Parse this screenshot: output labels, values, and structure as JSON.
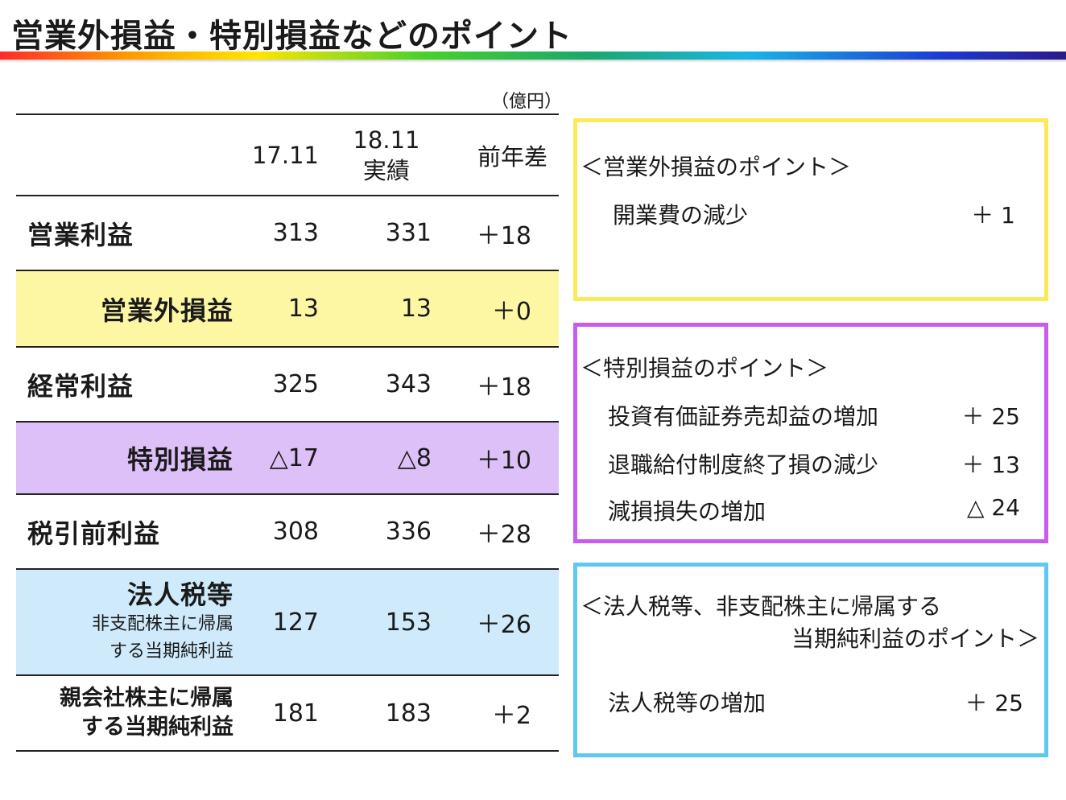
{
  "title": "営業外損益・特別損益などのポイント",
  "unit_label": "（億円）",
  "table": {
    "headers": [
      "",
      "17.11",
      "18.11\n実績",
      "前年差"
    ],
    "header_col2_line1": "18.11",
    "header_col2_line2": "実績",
    "rows": [
      {
        "label": "営業利益",
        "v1": "313",
        "v2": "331",
        "diff": "＋18"
      },
      {
        "label": "営業外損益",
        "v1": "13",
        "v2": "13",
        "diff": "＋0"
      },
      {
        "label": "経常利益",
        "v1": "325",
        "v2": "343",
        "diff": "＋18"
      },
      {
        "label": "特別損益",
        "v1": "△17",
        "v2": "△8",
        "diff": "＋10"
      },
      {
        "label": "税引前利益",
        "v1": "308",
        "v2": "336",
        "diff": "＋28"
      },
      {
        "label": "法人税等",
        "sub1": "非支配株主に帰属",
        "sub2": "する当期純利益",
        "v1": "127",
        "v2": "153",
        "diff": "＋26"
      },
      {
        "label_line1": "親会社株主に帰属",
        "label_line2": "する当期純利益",
        "v1": "181",
        "v2": "183",
        "diff": "＋2"
      }
    ]
  },
  "boxes": {
    "non_operating": {
      "heading": "＜営業外損益のポイント＞",
      "items": [
        {
          "label": "開業費の減少",
          "value": "＋ 1"
        }
      ],
      "border_color": "#fbea55"
    },
    "extraordinary": {
      "heading": "＜特別損益のポイント＞",
      "items": [
        {
          "label": "投資有価証券売却益の増加",
          "value": "＋ 25"
        },
        {
          "label": "退職給付制度終了損の減少",
          "value": "＋ 13"
        },
        {
          "label": "減損損失の増加",
          "value": "△ 24"
        }
      ],
      "border_color": "#c85cf0"
    },
    "taxes": {
      "heading_line1": "＜法人税等、非支配株主に帰属する",
      "heading_line2": "当期純利益のポイント＞",
      "items": [
        {
          "label": "法人税等の増加",
          "value": "＋ 25"
        }
      ],
      "border_color": "#5ec8f2"
    }
  },
  "row_colors": {
    "non_operating": "#fdf7a4",
    "extraordinary": "#dcc0f7",
    "taxes": "#cfeafb"
  }
}
